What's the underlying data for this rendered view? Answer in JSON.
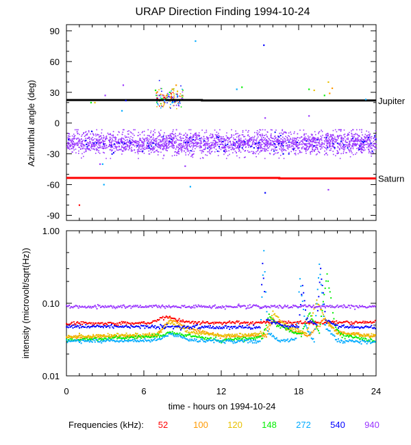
{
  "chart_data": [
    {
      "type": "scatter",
      "title": "URAP Direction Finding  1994-10-24",
      "xlabel": "",
      "ylabel": "Azimuthal angle (deg)",
      "xlim": [
        0,
        24
      ],
      "ylim": [
        -95,
        96
      ],
      "x_ticks": [
        0,
        6,
        12,
        18,
        24
      ],
      "y_ticks": [
        {
          "v": 90,
          "label": "90"
        },
        {
          "v": 60,
          "label": "60"
        },
        {
          "v": 30,
          "label": "30"
        },
        {
          "v": 0,
          "label": "0"
        },
        {
          "v": -30,
          "label": "-30"
        },
        {
          "v": -60,
          "label": "-60"
        },
        {
          "v": -90,
          "label": "-90"
        }
      ],
      "reference_lines": [
        {
          "name": "Jupiter",
          "color": "#000000",
          "points": [
            [
              0,
              22.5
            ],
            [
              10.5,
              22.5
            ],
            [
              10.5,
              22
            ],
            [
              24,
              22
            ]
          ]
        },
        {
          "name": "Saturn",
          "color": "#ff0000",
          "points": [
            [
              0,
              -53.5
            ],
            [
              16.5,
              -53.5
            ],
            [
              16.5,
              -54
            ],
            [
              24,
              -54
            ]
          ]
        }
      ],
      "band": {
        "series": "940",
        "center": -19,
        "spread": 5.5,
        "range": [
          0,
          24
        ]
      },
      "series": [
        {
          "name": "52",
          "color": "#ff0000",
          "points": [
            [
              1.0,
              -80
            ],
            [
              7.6,
              25
            ],
            [
              8.1,
              29
            ]
          ]
        },
        {
          "name": "100",
          "color": "#ff9900",
          "points": [
            [
              7.3,
              28
            ],
            [
              8.2,
              33
            ],
            [
              8.5,
              37
            ],
            [
              20.4,
              29
            ],
            [
              20.6,
              34
            ]
          ]
        },
        {
          "name": "120",
          "color": "#e8c000",
          "points": [
            [
              2.2,
              20
            ],
            [
              7.0,
              30
            ],
            [
              7.8,
              27
            ],
            [
              8.6,
              31
            ],
            [
              19.2,
              32
            ],
            [
              20.3,
              40
            ]
          ]
        },
        {
          "name": "148",
          "color": "#00ee00",
          "points": [
            [
              1.9,
              20
            ],
            [
              6.9,
              32
            ],
            [
              7.4,
              24
            ],
            [
              8.0,
              30
            ],
            [
              13.6,
              35
            ],
            [
              18.8,
              33
            ],
            [
              20.0,
              27
            ]
          ]
        },
        {
          "name": "272",
          "color": "#00aaff",
          "points": [
            [
              2.8,
              -40
            ],
            [
              2.9,
              -60
            ],
            [
              4.3,
              12
            ],
            [
              7.6,
              22
            ],
            [
              8.2,
              20
            ],
            [
              9.6,
              -62
            ],
            [
              10.0,
              80
            ],
            [
              13.2,
              33
            ],
            [
              23.2,
              23
            ]
          ]
        },
        {
          "name": "540",
          "color": "#0000ff",
          "points": [
            [
              4.6,
              22
            ],
            [
              8.4,
              21
            ],
            [
              15.3,
              76
            ],
            [
              15.4,
              -68
            ],
            [
              16.8,
              -30
            ]
          ]
        },
        {
          "name": "940",
          "color": "#9933ff",
          "points": [
            [
              2.6,
              -40
            ],
            [
              3.0,
              27
            ],
            [
              4.4,
              37
            ],
            [
              9.2,
              -42
            ],
            [
              15.4,
              5
            ],
            [
              18.8,
              7
            ],
            [
              20.3,
              -65
            ]
          ]
        }
      ]
    },
    {
      "type": "line",
      "title": "",
      "xlabel": "time - hours on 1994-10-24",
      "ylabel": "intensity (microvolt/sqrt(Hz))",
      "xlim": [
        0,
        24
      ],
      "ylim": [
        0.01,
        1.0
      ],
      "yscale": "log",
      "x_ticks": [
        0,
        6,
        12,
        18,
        24
      ],
      "y_ticks": [
        {
          "v": 1.0,
          "label": "1.00"
        },
        {
          "v": 0.1,
          "label": "0.10"
        },
        {
          "v": 0.01,
          "label": "0.01"
        }
      ],
      "series": [
        {
          "name": "52",
          "color": "#ff0000",
          "points": [
            [
              0,
              0.053
            ],
            [
              6.5,
              0.054
            ],
            [
              7.4,
              0.062
            ],
            [
              7.8,
              0.066
            ],
            [
              8.6,
              0.058
            ],
            [
              10,
              0.054
            ],
            [
              24,
              0.055
            ]
          ]
        },
        {
          "name": "100",
          "color": "#ff9900",
          "points": [
            [
              0,
              0.034
            ],
            [
              7.0,
              0.036
            ],
            [
              8.0,
              0.06
            ],
            [
              9.5,
              0.045
            ],
            [
              12,
              0.035
            ],
            [
              15.5,
              0.036
            ],
            [
              16.0,
              0.06
            ],
            [
              17,
              0.045
            ],
            [
              18.8,
              0.036
            ],
            [
              20.0,
              0.06
            ],
            [
              21,
              0.04
            ],
            [
              24,
              0.035
            ]
          ]
        },
        {
          "name": "120",
          "color": "#e8c000",
          "points": [
            [
              0,
              0.035
            ],
            [
              7.0,
              0.037
            ],
            [
              8.0,
              0.055
            ],
            [
              9.5,
              0.04
            ],
            [
              12,
              0.036
            ],
            [
              15.4,
              0.038
            ],
            [
              16.0,
              0.075
            ],
            [
              17,
              0.05
            ],
            [
              18.6,
              0.038
            ],
            [
              19.4,
              0.11
            ],
            [
              20.2,
              0.055
            ],
            [
              21,
              0.038
            ],
            [
              24,
              0.036
            ]
          ]
        },
        {
          "name": "148",
          "color": "#00ee00",
          "points": [
            [
              0,
              0.031
            ],
            [
              7.0,
              0.035
            ],
            [
              8.0,
              0.04
            ],
            [
              9.5,
              0.036
            ],
            [
              12,
              0.031
            ],
            [
              15.2,
              0.034
            ],
            [
              15.7,
              0.07
            ],
            [
              16.3,
              0.05
            ],
            [
              18.2,
              0.036
            ],
            [
              18.8,
              0.075
            ],
            [
              19.6,
              0.04
            ],
            [
              20.2,
              0.26
            ],
            [
              20.8,
              0.05
            ],
            [
              21.3,
              0.036
            ],
            [
              24,
              0.03
            ]
          ]
        },
        {
          "name": "272",
          "color": "#00aaff",
          "points": [
            [
              0,
              0.03
            ],
            [
              7.0,
              0.031
            ],
            [
              8.0,
              0.038
            ],
            [
              9.5,
              0.032
            ],
            [
              12,
              0.03
            ],
            [
              15.0,
              0.03
            ],
            [
              15.3,
              0.5
            ],
            [
              15.6,
              0.04
            ],
            [
              16.5,
              0.03
            ],
            [
              17.8,
              0.032
            ],
            [
              18.1,
              0.22
            ],
            [
              18.5,
              0.05
            ],
            [
              19.2,
              0.03
            ],
            [
              19.6,
              0.35
            ],
            [
              20.0,
              0.05
            ],
            [
              21,
              0.03
            ],
            [
              24,
              0.029
            ]
          ]
        },
        {
          "name": "540",
          "color": "#0000ff",
          "points": [
            [
              0,
              0.048
            ],
            [
              12,
              0.047
            ],
            [
              15.0,
              0.047
            ],
            [
              15.2,
              0.35
            ],
            [
              15.5,
              0.06
            ],
            [
              17,
              0.048
            ],
            [
              18.0,
              0.048
            ],
            [
              18.3,
              0.18
            ],
            [
              18.6,
              0.06
            ],
            [
              19.4,
              0.05
            ],
            [
              19.7,
              0.3
            ],
            [
              20.1,
              0.06
            ],
            [
              21,
              0.048
            ],
            [
              24,
              0.047
            ]
          ]
        },
        {
          "name": "940",
          "color": "#9933ff",
          "points": [
            [
              0,
              0.09
            ],
            [
              13.3,
              0.09
            ],
            [
              13.4,
              0.096
            ],
            [
              13.5,
              0.09
            ],
            [
              24,
              0.09
            ]
          ]
        }
      ]
    }
  ],
  "legend": {
    "label": "Frequencies (kHz):",
    "items": [
      {
        "name": "52",
        "color": "#ff0000"
      },
      {
        "name": "100",
        "color": "#ff9900"
      },
      {
        "name": "120",
        "color": "#e8c000"
      },
      {
        "name": "148",
        "color": "#00ee00"
      },
      {
        "name": "272",
        "color": "#00aaff"
      },
      {
        "name": "540",
        "color": "#0000ff"
      },
      {
        "name": "940",
        "color": "#9933ff"
      }
    ]
  }
}
